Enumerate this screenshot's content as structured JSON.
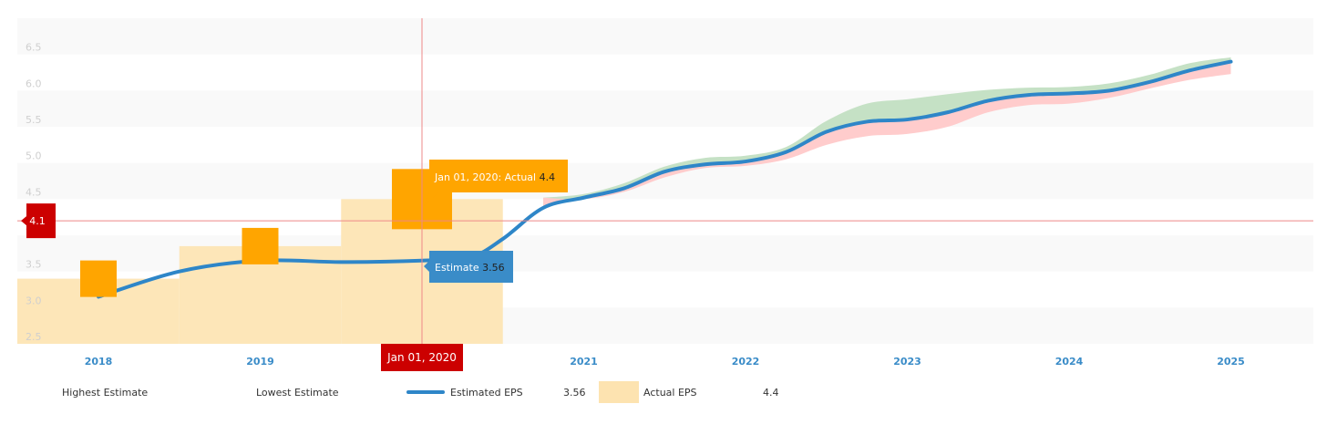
{
  "chart_data": {
    "type": "line",
    "categories": [
      "2018",
      "2019",
      "2020",
      "2021",
      "2022",
      "2023",
      "2024",
      "2025"
    ],
    "y_ticks": [
      "2.5",
      "3.0",
      "3.5",
      "4.0",
      "4.5",
      "5.0",
      "5.5",
      "6.0",
      "6.5"
    ],
    "ylim": [
      2.4,
      6.9
    ],
    "estimated_eps": {
      "name": "Estimated EPS",
      "x": [
        2018,
        2018.5,
        2019,
        2019.5,
        2020,
        2020.3,
        2020.5,
        2020.75,
        2021,
        2021.25,
        2021.5,
        2021.75,
        2022,
        2022.25,
        2022.5,
        2022.75,
        2023,
        2023.25,
        2023.5,
        2023.75,
        2024,
        2024.25,
        2024.5,
        2024.75,
        2025
      ],
      "values": [
        3.05,
        3.4,
        3.55,
        3.53,
        3.55,
        3.6,
        3.85,
        4.28,
        4.42,
        4.55,
        4.78,
        4.88,
        4.92,
        5.05,
        5.33,
        5.47,
        5.5,
        5.6,
        5.76,
        5.84,
        5.86,
        5.9,
        6.02,
        6.18,
        6.3
      ],
      "color": "#2e86c8"
    },
    "highest_estimate": {
      "name": "Highest Estimate",
      "x": [
        2020.75,
        2021,
        2021.25,
        2021.5,
        2021.75,
        2022,
        2022.25,
        2022.5,
        2022.75,
        2023,
        2023.25,
        2023.5,
        2023.75,
        2024,
        2024.25,
        2024.5,
        2024.75,
        2025
      ],
      "values": [
        4.42,
        4.47,
        4.62,
        4.85,
        4.97,
        5.0,
        5.12,
        5.48,
        5.72,
        5.78,
        5.85,
        5.91,
        5.94,
        5.95,
        6.0,
        6.12,
        6.28,
        6.36
      ],
      "color": "#c5e1c5"
    },
    "lowest_estimate": {
      "name": "Lowest Estimate",
      "x": [
        2020.75,
        2021,
        2021.25,
        2021.5,
        2021.75,
        2022,
        2022.25,
        2022.5,
        2022.75,
        2023,
        2023.25,
        2023.5,
        2023.75,
        2024,
        2024.25,
        2024.5,
        2024.75,
        2025
      ],
      "values": [
        4.42,
        4.4,
        4.5,
        4.7,
        4.83,
        4.86,
        4.95,
        5.15,
        5.27,
        5.3,
        5.4,
        5.6,
        5.7,
        5.72,
        5.8,
        5.93,
        6.05,
        6.13
      ],
      "color": "#ffcccc"
    },
    "actual_eps": {
      "name": "Actual EPS",
      "categories": [
        "2018",
        "2019",
        "2020"
      ],
      "values": [
        3.3,
        3.75,
        4.4
      ],
      "color": "#fde3b0",
      "marker_color": "#ffa500"
    },
    "crosshair": {
      "x_label": "Jan 01, 2020",
      "y_label": "4.1",
      "y_value": 4.1
    },
    "tooltip_actual": {
      "label": "Jan 01, 2020: Actual",
      "value": "4.4"
    },
    "tooltip_estimate": {
      "label": "Estimate",
      "value": "3.56"
    }
  },
  "legend": {
    "highest": "Highest Estimate",
    "lowest": "Lowest Estimate",
    "estimated": "Estimated EPS",
    "estimated_value": "3.56",
    "actual": "Actual EPS",
    "actual_value": "4.4"
  }
}
